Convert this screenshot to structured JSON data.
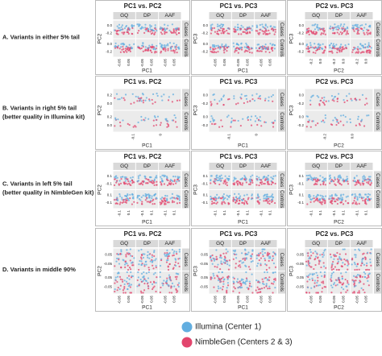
{
  "rows": [
    {
      "label": [
        "A. Variants in either 5% tail"
      ],
      "panels": [
        {
          "title": "PC1 vs. PC2",
          "xlabel": "PC1",
          "ylabel": "PC2",
          "facets": [
            "GQ",
            "DP",
            "AAF"
          ],
          "strata": [
            "Cases",
            "Controls"
          ],
          "yticks": [
            "0.0",
            "-0.2"
          ],
          "xticks": [
            "-0.05",
            "0.05"
          ]
        },
        {
          "title": "PC1 vs. PC3",
          "xlabel": "PC1",
          "ylabel": "PC3",
          "facets": [
            "GQ",
            "DP",
            "AAF"
          ],
          "strata": [
            "Cases",
            "Controls"
          ],
          "yticks": [
            "0.0",
            "-0.2"
          ],
          "xticks": [
            "-0.05",
            "0.05"
          ]
        },
        {
          "title": "PC2 vs. PC3",
          "xlabel": "PC2",
          "ylabel": "PC3",
          "facets": [
            "GQ",
            "DP",
            "AAF"
          ],
          "strata": [
            "Cases",
            "Controls"
          ],
          "yticks": [
            "0.0",
            "-0.2"
          ],
          "xticks": [
            "-0.2",
            "0.0"
          ]
        }
      ]
    },
    {
      "label": [
        "B. Variants in right 5% tail",
        "(better quality in Illumina kit)"
      ],
      "panels": [
        {
          "title": "PC1 vs. PC2",
          "xlabel": "PC1",
          "ylabel": "PC2",
          "strata": [
            "Cases",
            "Controls"
          ],
          "yticks": [
            "0.2",
            "0.0"
          ],
          "xticks": [
            "-0.1",
            "0"
          ]
        },
        {
          "title": "PC1 vs. PC3",
          "xlabel": "PC1",
          "ylabel": "PC3",
          "strata": [
            "Cases",
            "Controls"
          ],
          "yticks": [
            "0.0",
            "-0.2"
          ],
          "xticks": [
            "-0.1",
            "0"
          ]
        },
        {
          "title": "PC2 vs. PC3",
          "xlabel": "PC2",
          "ylabel": "PC3",
          "strata": [
            "Cases",
            "Controls"
          ],
          "yticks": [
            "0.0",
            "-0.2"
          ],
          "xticks": [
            "-0.2",
            "0.0"
          ]
        }
      ]
    },
    {
      "label": [
        "C. Variants in left 5% tail",
        "(better quality in NimbleGen kit)"
      ],
      "panels": [
        {
          "title": "PC1 vs. PC2",
          "xlabel": "PC1",
          "ylabel": "PC2",
          "facets": [
            "GQ",
            "DP",
            "AAF"
          ],
          "strata": [
            "Cases",
            "Controls"
          ],
          "yticks": [
            "0.1",
            "-0.1"
          ],
          "xticks": [
            "-0.1",
            "0.1"
          ]
        },
        {
          "title": "PC1 vs. PC3",
          "xlabel": "PC1",
          "ylabel": "PC3",
          "facets": [
            "GQ",
            "DP",
            "AAF"
          ],
          "strata": [
            "Cases",
            "Controls"
          ],
          "yticks": [
            "0.1",
            "-0.1"
          ],
          "xticks": [
            "-0.1",
            "0.1"
          ]
        },
        {
          "title": "PC2 vs. PC3",
          "xlabel": "PC2",
          "ylabel": "PC3",
          "facets": [
            "GQ",
            "DP",
            "AAF"
          ],
          "strata": [
            "Cases",
            "Controls"
          ],
          "yticks": [
            "0.1",
            "-0.1"
          ],
          "xticks": [
            "-0.1",
            "0.1"
          ]
        }
      ]
    },
    {
      "label": [
        "D. Variants in middle 90%"
      ],
      "panels": [
        {
          "title": "PC1 vs. PC2",
          "xlabel": "PC1",
          "ylabel": "PC2",
          "facets": [
            "GQ",
            "DP",
            "AAF"
          ],
          "strata": [
            "Cases",
            "Controls"
          ],
          "yticks": [
            "0.05",
            "-0.05"
          ],
          "xticks": [
            "-0.05",
            "0.05"
          ]
        },
        {
          "title": "PC1 vs. PC3",
          "xlabel": "PC1",
          "ylabel": "PC3",
          "facets": [
            "GQ",
            "DP",
            "AAF"
          ],
          "strata": [
            "Cases",
            "Controls"
          ],
          "yticks": [
            "0.05",
            "-0.05"
          ],
          "xticks": [
            "-0.05",
            "0.05"
          ]
        },
        {
          "title": "PC2 vs. PC3",
          "xlabel": "PC2",
          "ylabel": "PC3",
          "facets": [
            "GQ",
            "DP",
            "AAF"
          ],
          "strata": [
            "Cases",
            "Controls"
          ],
          "yticks": [
            "0.05",
            "-0.05"
          ],
          "xticks": [
            "-0.05",
            "0.05"
          ]
        }
      ]
    }
  ],
  "legend": [
    {
      "label": "Illumina (Center 1)",
      "color": "#62aee0"
    },
    {
      "label": "NimbleGen (Centers 2 & 3)",
      "color": "#e2456d"
    }
  ]
}
